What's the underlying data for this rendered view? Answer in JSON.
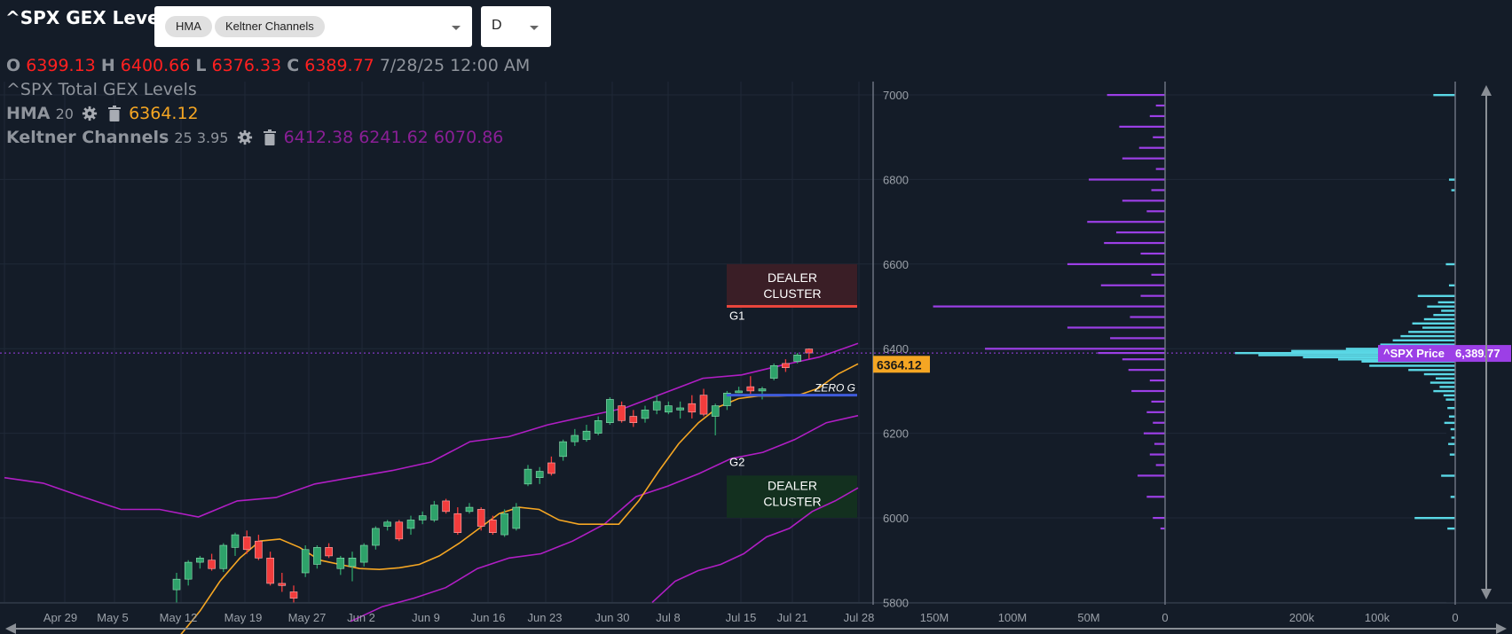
{
  "header": {
    "title": "^SPX GEX Levels",
    "indicator_chips": [
      "HMA",
      "Keltner Channels"
    ],
    "period_value": "D"
  },
  "ohlc": {
    "o_label": "O",
    "o": "6399.13",
    "h_label": "H",
    "h": "6400.66",
    "l_label": "L",
    "l": "6376.33",
    "c_label": "C",
    "c": "6389.77",
    "datetime": "7/28/25 12:00 AM"
  },
  "legend": {
    "gex_title": "^SPX Total GEX Levels",
    "hma_name": "HMA",
    "hma_params": "20",
    "hma_value": "6364.12",
    "kc_name": "Keltner Channels",
    "kc_params": "25 3.95",
    "kc_values": "6412.38 6241.62 6070.86"
  },
  "colors": {
    "background": "#141c28",
    "up_candle": "#2ea26a",
    "down_candle": "#f23c3c",
    "hma": "#f5a623",
    "keltner": "#b01ec4",
    "gex_bar": "#9c3fe6",
    "volume_bar": "#5ad8e6",
    "zero_gamma": "#3f5bdb",
    "g1_line": "#e8453c",
    "price_tag": "#9c3fe6"
  },
  "annotations": {
    "dealer_cluster_top": [
      "DEALER",
      "CLUSTER"
    ],
    "dealer_cluster_bottom": [
      "DEALER",
      "CLUSTER"
    ],
    "g1_label": "G1",
    "g2_label": "G2",
    "zero_g_label": "ZERO G",
    "hma_price_tag": "6364.12",
    "spx_price_label": "^SPX Price",
    "spx_price_value": "6,389.77"
  },
  "chart_data": {
    "type": "candlestick",
    "y_axis_ticks": [
      "7000",
      "6800",
      "6600",
      "6400",
      "6200",
      "6000",
      "5800"
    ],
    "ylim": [
      5800,
      7050
    ],
    "x_tick_labels": [
      "Apr 29",
      "May 5",
      "May 12",
      "May 19",
      "May 27",
      "Jun 2",
      "Jun 9",
      "Jun 16",
      "Jun 23",
      "Jun 30",
      "Jul 8",
      "Jul 15",
      "Jul 21",
      "Jul 28"
    ],
    "gex_axis_ticks": [
      "150M",
      "100M",
      "50M",
      "0"
    ],
    "volume_axis_ticks": [
      "200k",
      "100k",
      "0"
    ],
    "candles": [
      {
        "o": 5830,
        "h": 5870,
        "l": 5800,
        "c": 5855
      },
      {
        "o": 5855,
        "h": 5900,
        "l": 5840,
        "c": 5895
      },
      {
        "o": 5895,
        "h": 5910,
        "l": 5880,
        "c": 5905
      },
      {
        "o": 5900,
        "h": 5915,
        "l": 5875,
        "c": 5880
      },
      {
        "o": 5880,
        "h": 5940,
        "l": 5872,
        "c": 5935
      },
      {
        "o": 5930,
        "h": 5965,
        "l": 5910,
        "c": 5960
      },
      {
        "o": 5955,
        "h": 5970,
        "l": 5915,
        "c": 5925
      },
      {
        "o": 5945,
        "h": 5960,
        "l": 5900,
        "c": 5905
      },
      {
        "o": 5905,
        "h": 5920,
        "l": 5840,
        "c": 5845
      },
      {
        "o": 5845,
        "h": 5870,
        "l": 5825,
        "c": 5840
      },
      {
        "o": 5825,
        "h": 5840,
        "l": 5800,
        "c": 5810
      },
      {
        "o": 5870,
        "h": 5935,
        "l": 5860,
        "c": 5925
      },
      {
        "o": 5890,
        "h": 5935,
        "l": 5880,
        "c": 5930
      },
      {
        "o": 5930,
        "h": 5940,
        "l": 5905,
        "c": 5910
      },
      {
        "o": 5880,
        "h": 5910,
        "l": 5865,
        "c": 5905
      },
      {
        "o": 5885,
        "h": 5920,
        "l": 5850,
        "c": 5905
      },
      {
        "o": 5895,
        "h": 5940,
        "l": 5885,
        "c": 5935
      },
      {
        "o": 5935,
        "h": 5980,
        "l": 5925,
        "c": 5975
      },
      {
        "o": 5980,
        "h": 5995,
        "l": 5970,
        "c": 5990
      },
      {
        "o": 5990,
        "h": 5995,
        "l": 5945,
        "c": 5950
      },
      {
        "o": 5975,
        "h": 6005,
        "l": 5960,
        "c": 5995
      },
      {
        "o": 5995,
        "h": 6015,
        "l": 5985,
        "c": 6005
      },
      {
        "o": 5995,
        "h": 6040,
        "l": 5990,
        "c": 6030
      },
      {
        "o": 6040,
        "h": 6045,
        "l": 6010,
        "c": 6015
      },
      {
        "o": 6010,
        "h": 6025,
        "l": 5960,
        "c": 5965
      },
      {
        "o": 6015,
        "h": 6035,
        "l": 6010,
        "c": 6025
      },
      {
        "o": 6020,
        "h": 6025,
        "l": 5970,
        "c": 5980
      },
      {
        "o": 5995,
        "h": 6005,
        "l": 5960,
        "c": 5965
      },
      {
        "o": 5960,
        "h": 6020,
        "l": 5955,
        "c": 6010
      },
      {
        "o": 5975,
        "h": 6035,
        "l": 5970,
        "c": 6025
      },
      {
        "o": 6080,
        "h": 6125,
        "l": 6075,
        "c": 6115
      },
      {
        "o": 6095,
        "h": 6120,
        "l": 6080,
        "c": 6110
      },
      {
        "o": 6130,
        "h": 6145,
        "l": 6100,
        "c": 6105
      },
      {
        "o": 6145,
        "h": 6185,
        "l": 6135,
        "c": 6180
      },
      {
        "o": 6180,
        "h": 6210,
        "l": 6170,
        "c": 6195
      },
      {
        "o": 6185,
        "h": 6220,
        "l": 6180,
        "c": 6205
      },
      {
        "o": 6200,
        "h": 6240,
        "l": 6195,
        "c": 6230
      },
      {
        "o": 6225,
        "h": 6285,
        "l": 6220,
        "c": 6280
      },
      {
        "o": 6265,
        "h": 6275,
        "l": 6225,
        "c": 6230
      },
      {
        "o": 6240,
        "h": 6255,
        "l": 6215,
        "c": 6225
      },
      {
        "o": 6235,
        "h": 6265,
        "l": 6225,
        "c": 6255
      },
      {
        "o": 6255,
        "h": 6290,
        "l": 6245,
        "c": 6275
      },
      {
        "o": 6250,
        "h": 6275,
        "l": 6245,
        "c": 6265
      },
      {
        "o": 6255,
        "h": 6275,
        "l": 6235,
        "c": 6260
      },
      {
        "o": 6270,
        "h": 6290,
        "l": 6235,
        "c": 6250
      },
      {
        "o": 6290,
        "h": 6305,
        "l": 6240,
        "c": 6245
      },
      {
        "o": 6240,
        "h": 6270,
        "l": 6195,
        "c": 6265
      },
      {
        "o": 6265,
        "h": 6300,
        "l": 6255,
        "c": 6295
      },
      {
        "o": 6300,
        "h": 6310,
        "l": 6295,
        "c": 6300
      },
      {
        "o": 6310,
        "h": 6335,
        "l": 6290,
        "c": 6300
      },
      {
        "o": 6300,
        "h": 6310,
        "l": 6280,
        "c": 6305
      },
      {
        "o": 6330,
        "h": 6365,
        "l": 6325,
        "c": 6360
      },
      {
        "o": 6365,
        "h": 6375,
        "l": 6345,
        "c": 6355
      },
      {
        "o": 6370,
        "h": 6390,
        "l": 6365,
        "c": 6385
      },
      {
        "o": 6399.13,
        "h": 6400.66,
        "l": 6376.33,
        "c": 6389.77
      }
    ],
    "hma_line": [
      5722,
      5780,
      5850,
      5905,
      5945,
      5950,
      5930,
      5900,
      5890,
      5880,
      5878,
      5882,
      5890,
      5910,
      5940,
      5975,
      6010,
      6025,
      6020,
      5995,
      5985,
      5985,
      5985,
      6040,
      6110,
      6175,
      6225,
      6262,
      6282,
      6288,
      6288,
      6290,
      6306,
      6340,
      6364.12
    ],
    "keltner_upper": [
      6095,
      6082,
      6050,
      6020,
      6020,
      6002,
      6040,
      6048,
      6080,
      6096,
      6112,
      6132,
      6180,
      6192,
      6220,
      6240,
      6260,
      6295,
      6330,
      6338,
      6360,
      6380,
      6412.38
    ],
    "keltner_mid": [
      5755,
      5790,
      5810,
      5835,
      5880,
      5905,
      5915,
      5945,
      5985,
      6050,
      6075,
      6105,
      6140,
      6155,
      6185,
      6225,
      6241.62
    ],
    "keltner_lower": [
      5800,
      5850,
      5875,
      5890,
      5915,
      5955,
      5975,
      6015,
      6040,
      6070.86
    ],
    "dealer_cluster_top": {
      "from": 6500,
      "to": 6600
    },
    "dealer_cluster_bottom": {
      "from": 6000,
      "to": 6100
    },
    "g1_level": 6500,
    "zero_gamma_level": 6290,
    "current_price": 6389.77,
    "gex_levels_millions": [
      {
        "strike": 7000,
        "value": 38
      },
      {
        "strike": 6975,
        "value": 6
      },
      {
        "strike": 6950,
        "value": 10
      },
      {
        "strike": 6925,
        "value": 30
      },
      {
        "strike": 6900,
        "value": 8
      },
      {
        "strike": 6875,
        "value": 17
      },
      {
        "strike": 6850,
        "value": 28
      },
      {
        "strike": 6825,
        "value": 6
      },
      {
        "strike": 6800,
        "value": 50
      },
      {
        "strike": 6775,
        "value": 9
      },
      {
        "strike": 6750,
        "value": 28
      },
      {
        "strike": 6725,
        "value": 12
      },
      {
        "strike": 6700,
        "value": 51
      },
      {
        "strike": 6675,
        "value": 32
      },
      {
        "strike": 6650,
        "value": 40
      },
      {
        "strike": 6625,
        "value": 16
      },
      {
        "strike": 6600,
        "value": 64
      },
      {
        "strike": 6575,
        "value": 9
      },
      {
        "strike": 6550,
        "value": 42
      },
      {
        "strike": 6525,
        "value": 16
      },
      {
        "strike": 6500,
        "value": 152
      },
      {
        "strike": 6475,
        "value": 23
      },
      {
        "strike": 6450,
        "value": 64
      },
      {
        "strike": 6425,
        "value": 36
      },
      {
        "strike": 6400,
        "value": 118
      },
      {
        "strike": 6390,
        "value": 44
      },
      {
        "strike": 6375,
        "value": 28
      },
      {
        "strike": 6350,
        "value": 24
      },
      {
        "strike": 6325,
        "value": 10
      },
      {
        "strike": 6300,
        "value": 22
      },
      {
        "strike": 6275,
        "value": 9
      },
      {
        "strike": 6250,
        "value": 12
      },
      {
        "strike": 6225,
        "value": 8
      },
      {
        "strike": 6200,
        "value": 14
      },
      {
        "strike": 6175,
        "value": 7
      },
      {
        "strike": 6150,
        "value": 10
      },
      {
        "strike": 6125,
        "value": 6
      },
      {
        "strike": 6100,
        "value": 18
      },
      {
        "strike": 6050,
        "value": 12
      },
      {
        "strike": 6000,
        "value": 8
      },
      {
        "strike": 5975,
        "value": 3
      }
    ],
    "volume_levels_thousands": [
      {
        "strike": 7000,
        "value": 28
      },
      {
        "strike": 6800,
        "value": 8
      },
      {
        "strike": 6775,
        "value": 5
      },
      {
        "strike": 6600,
        "value": 12
      },
      {
        "strike": 6550,
        "value": 8
      },
      {
        "strike": 6525,
        "value": 48
      },
      {
        "strike": 6510,
        "value": 22
      },
      {
        "strike": 6500,
        "value": 36
      },
      {
        "strike": 6490,
        "value": 18
      },
      {
        "strike": 6480,
        "value": 28
      },
      {
        "strike": 6470,
        "value": 40
      },
      {
        "strike": 6460,
        "value": 55
      },
      {
        "strike": 6450,
        "value": 42
      },
      {
        "strike": 6440,
        "value": 60
      },
      {
        "strike": 6430,
        "value": 70
      },
      {
        "strike": 6420,
        "value": 80
      },
      {
        "strike": 6410,
        "value": 96
      },
      {
        "strike": 6400,
        "value": 140
      },
      {
        "strike": 6395,
        "value": 210
      },
      {
        "strike": 6390,
        "value": 282
      },
      {
        "strike": 6385,
        "value": 252
      },
      {
        "strike": 6380,
        "value": 195
      },
      {
        "strike": 6375,
        "value": 150
      },
      {
        "strike": 6370,
        "value": 120
      },
      {
        "strike": 6360,
        "value": 110
      },
      {
        "strike": 6350,
        "value": 60
      },
      {
        "strike": 6340,
        "value": 40
      },
      {
        "strike": 6330,
        "value": 25
      },
      {
        "strike": 6320,
        "value": 32
      },
      {
        "strike": 6310,
        "value": 20
      },
      {
        "strike": 6300,
        "value": 28
      },
      {
        "strike": 6290,
        "value": 15
      },
      {
        "strike": 6280,
        "value": 12
      },
      {
        "strike": 6260,
        "value": 10
      },
      {
        "strike": 6240,
        "value": 8
      },
      {
        "strike": 6225,
        "value": 14
      },
      {
        "strike": 6210,
        "value": 6
      },
      {
        "strike": 6190,
        "value": 5
      },
      {
        "strike": 6175,
        "value": 9
      },
      {
        "strike": 6150,
        "value": 7
      },
      {
        "strike": 6100,
        "value": 18
      },
      {
        "strike": 6050,
        "value": 6
      },
      {
        "strike": 6000,
        "value": 52
      },
      {
        "strike": 5975,
        "value": 10
      }
    ]
  }
}
